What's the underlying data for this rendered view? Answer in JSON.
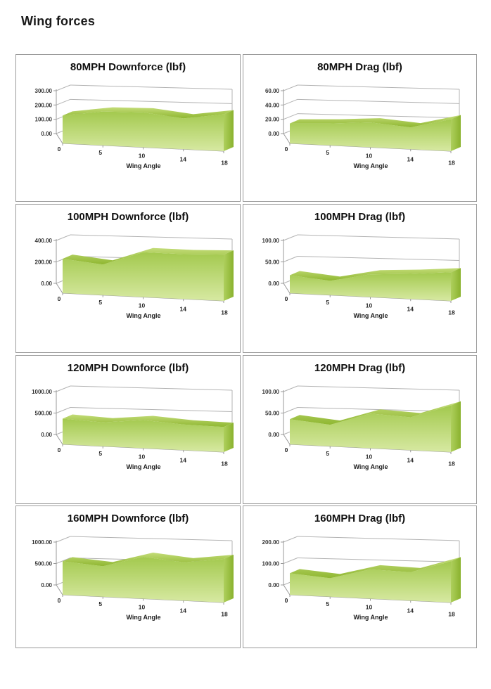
{
  "page": {
    "title": "Wing forces"
  },
  "style": {
    "face_top": "#a3c94e",
    "face_bottom": "#d7e9a2",
    "ridge_light": "#c3dc78",
    "ridge_dark": "#8fb731",
    "cap_light": "#aecf5d",
    "cap_dark": "#8ab22e",
    "gridline": "#b3b3b3",
    "axis": "#999999",
    "border": "#9a9a9a",
    "text": "#262626"
  },
  "chart_data": [
    {
      "type": "area",
      "title": "80MPH Downforce (lbf)",
      "xlabel": "Wing Angle",
      "categories": [
        "0",
        "5",
        "10",
        "14",
        "18"
      ],
      "values": [
        140,
        170,
        175,
        155,
        185
      ],
      "ylim": [
        0,
        300
      ],
      "ytick_labels": [
        "0.00",
        "100.00",
        "200.00",
        "300.00"
      ],
      "legend": "none",
      "grid": true
    },
    {
      "type": "area",
      "title": "80MPH Drag (lbf)",
      "xlabel": "Wing Angle",
      "categories": [
        "0",
        "5",
        "10",
        "14",
        "18"
      ],
      "values": [
        20,
        22,
        25,
        22,
        32
      ],
      "ylim": [
        0,
        60
      ],
      "ytick_labels": [
        "0.00",
        "20.00",
        "40.00",
        "60.00"
      ],
      "legend": "none",
      "grid": true
    },
    {
      "type": "area",
      "title": "100MPH Downforce (lbf)",
      "xlabel": "Wing Angle",
      "categories": [
        "0",
        "5",
        "10",
        "14",
        "18"
      ],
      "values": [
        230,
        205,
        300,
        300,
        310
      ],
      "ylim": [
        0,
        400
      ],
      "ytick_labels": [
        "0.00",
        "200.00",
        "400.00"
      ],
      "legend": "none",
      "grid": true
    },
    {
      "type": "area",
      "title": "100MPH Drag (lbf)",
      "xlabel": "Wing Angle",
      "categories": [
        "0",
        "5",
        "10",
        "14",
        "18"
      ],
      "values": [
        30,
        24,
        38,
        42,
        48
      ],
      "ylim": [
        0,
        100
      ],
      "ytick_labels": [
        "0.00",
        "50.00",
        "100.00"
      ],
      "legend": "none",
      "grid": true
    },
    {
      "type": "area",
      "title": "120MPH Downforce (lbf)",
      "xlabel": "Wing Angle",
      "categories": [
        "0",
        "5",
        "10",
        "14",
        "18"
      ],
      "values": [
        430,
        400,
        470,
        430,
        420
      ],
      "ylim": [
        0,
        1000
      ],
      "ytick_labels": [
        "0.00",
        "500.00",
        "1000.00"
      ],
      "legend": "none",
      "grid": true
    },
    {
      "type": "area",
      "title": "120MPH Drag (lbf)",
      "xlabel": "Wing Angle",
      "categories": [
        "0",
        "5",
        "10",
        "14",
        "18"
      ],
      "values": [
        42,
        36,
        58,
        55,
        78
      ],
      "ylim": [
        0,
        100
      ],
      "ytick_labels": [
        "0.00",
        "50.00",
        "100.00"
      ],
      "legend": "none",
      "grid": true
    },
    {
      "type": "area",
      "title": "160MPH Downforce (lbf)",
      "xlabel": "Wing Angle",
      "categories": [
        "0",
        "5",
        "10",
        "14",
        "18"
      ],
      "values": [
        560,
        510,
        700,
        640,
        730
      ],
      "ylim": [
        0,
        1000
      ],
      "ytick_labels": [
        "0.00",
        "500.00",
        "1000.00"
      ],
      "legend": "none",
      "grid": true
    },
    {
      "type": "area",
      "title": "160MPH Drag (lbf)",
      "xlabel": "Wing Angle",
      "categories": [
        "0",
        "5",
        "10",
        "14",
        "18"
      ],
      "values": [
        72,
        62,
        98,
        95,
        138
      ],
      "ylim": [
        0,
        200
      ],
      "ytick_labels": [
        "0.00",
        "100.00",
        "200.00"
      ],
      "legend": "none",
      "grid": true
    }
  ]
}
